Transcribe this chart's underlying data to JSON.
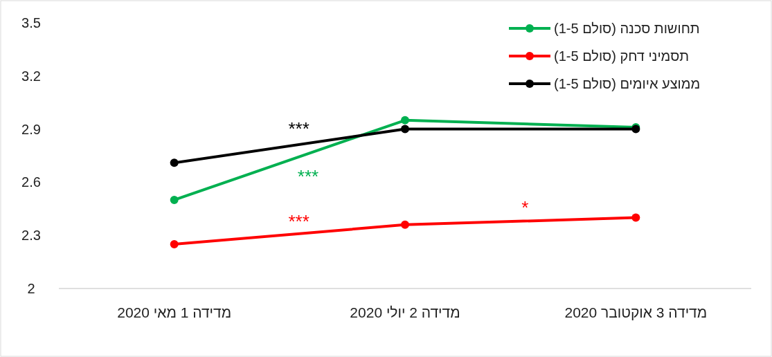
{
  "chart_data": {
    "type": "line",
    "categories": [
      "מדידה 1 מאי 2020",
      "מדידה 2 יולי 2020",
      "מדידה 3 אוקטובר 2020"
    ],
    "series": [
      {
        "name": "תחושות סכנה (סולם 1-5)",
        "color": "#00b050",
        "values": [
          2.5,
          2.95,
          2.91
        ]
      },
      {
        "name": "תסמיני דחק (סולם 1-5)",
        "color": "#ff0000",
        "values": [
          2.25,
          2.36,
          2.4
        ]
      },
      {
        "name": "ממוצע איומים (סולם 1-5)",
        "color": "#000000",
        "values": [
          2.71,
          2.9,
          2.9
        ]
      }
    ],
    "annotations": [
      "***",
      "***",
      "***",
      "*"
    ],
    "ylim": [
      2,
      3.5
    ],
    "yticks": [
      2,
      2.3,
      2.6,
      2.9,
      3.2,
      3.5
    ],
    "grid": false,
    "legend": "top right",
    "marker": "circle",
    "line_style": "solid"
  }
}
